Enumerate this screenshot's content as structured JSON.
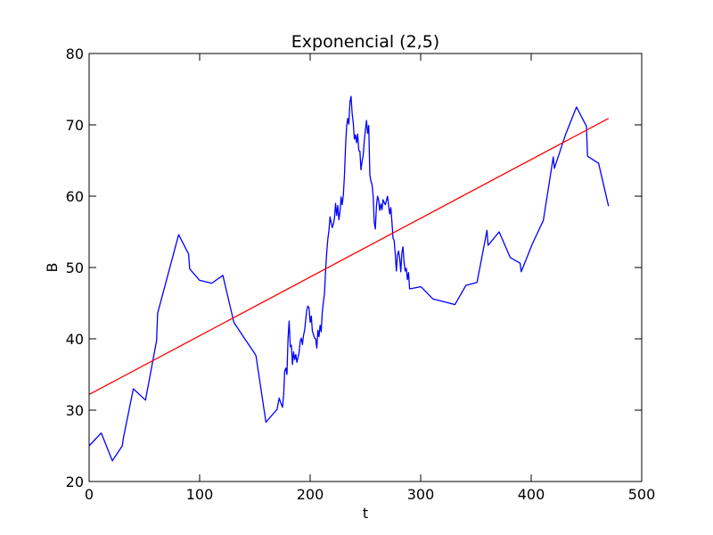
{
  "chart_data": {
    "type": "line",
    "title": "Exponencial (2,5)",
    "xlabel": "t",
    "ylabel": "B",
    "xlim": [
      0,
      500
    ],
    "ylim": [
      20,
      80
    ],
    "x_ticks": [
      "0",
      "100",
      "200",
      "300",
      "400",
      "500"
    ],
    "y_ticks": [
      "20",
      "30",
      "40",
      "50",
      "60",
      "70",
      "80"
    ],
    "grid": false,
    "series": [
      {
        "color": "#0000ff",
        "x": [
          0,
          11,
          21,
          30,
          31,
          40,
          51,
          61,
          62,
          81,
          90,
          91,
          100,
          111,
          121,
          131,
          140,
          150,
          151,
          160,
          161,
          170,
          172,
          173,
          175,
          176,
          177,
          178,
          179,
          180,
          181,
          182,
          183,
          184,
          185,
          186,
          187,
          188,
          189,
          190,
          191,
          192,
          193,
          194,
          195,
          196,
          197,
          198,
          199,
          200,
          201,
          202,
          203,
          204,
          205,
          206,
          207,
          208,
          209,
          210,
          211,
          212,
          213,
          214,
          215,
          216,
          217,
          218,
          219,
          220,
          221,
          222,
          223,
          224,
          225,
          226,
          227,
          228,
          229,
          230,
          231,
          232,
          233,
          234,
          235,
          236,
          237,
          238,
          239,
          240,
          241,
          242,
          243,
          244,
          245,
          246,
          247,
          248,
          249,
          250,
          251,
          252,
          253,
          254,
          255,
          256,
          257,
          258,
          259,
          260,
          261,
          262,
          263,
          264,
          265,
          266,
          267,
          268,
          269,
          270,
          271,
          272,
          273,
          274,
          275,
          276,
          277,
          278,
          279,
          280,
          281,
          282,
          283,
          284,
          285,
          286,
          287,
          288,
          289,
          290,
          300,
          301,
          311,
          321,
          331,
          341,
          351,
          360,
          361,
          371,
          381,
          390,
          391,
          401,
          411,
          420,
          421,
          431,
          441,
          450,
          451,
          461,
          470
        ],
        "y": [
          25.0,
          26.8,
          22.9,
          25.0,
          26.1,
          33.0,
          31.4,
          39.7,
          43.6,
          54.6,
          51.9,
          49.8,
          48.2,
          47.8,
          48.9,
          42.3,
          40.2,
          37.9,
          37.6,
          28.3,
          28.5,
          30.1,
          31.7,
          31.2,
          30.4,
          32.1,
          35.5,
          35.9,
          35.0,
          40.1,
          42.5,
          38.9,
          39.1,
          36.4,
          38.2,
          37.1,
          37.8,
          36.7,
          37.4,
          38.1,
          39.7,
          40.1,
          39.2,
          40.5,
          41.2,
          42.7,
          44.1,
          44.6,
          44.3,
          42.3,
          43.2,
          41.1,
          40.6,
          40.1,
          40.0,
          38.7,
          41.2,
          40.3,
          41.9,
          41.0,
          43.8,
          45.2,
          46.4,
          49.7,
          52.1,
          54.0,
          55.2,
          57.1,
          56.3,
          55.6,
          56.1,
          56.9,
          59.0,
          57.3,
          58.7,
          56.7,
          57.8,
          59.9,
          58.8,
          60.1,
          62.8,
          66.9,
          69.8,
          70.9,
          70.1,
          73.2,
          74.0,
          71.6,
          70.3,
          68.0,
          68.6,
          67.5,
          68.7,
          66.4,
          66.3,
          63.7,
          64.9,
          65.7,
          67.8,
          69.3,
          70.6,
          68.8,
          69.9,
          63.0,
          62.1,
          61.6,
          60.1,
          56.3,
          55.4,
          58.7,
          60.0,
          59.4,
          58.0,
          58.9,
          58.1,
          59.5,
          59.1,
          58.8,
          59.4,
          60.0,
          58.7,
          57.5,
          58.4,
          56.4,
          54.1,
          53.8,
          51.9,
          49.5,
          51.8,
          52.3,
          51.3,
          49.4,
          52.1,
          52.9,
          50.7,
          49.5,
          49.9,
          48.3,
          49.3,
          47.0,
          47.3,
          47.2,
          45.6,
          45.2,
          44.8,
          47.5,
          47.9,
          55.2,
          53.1,
          55.0,
          51.4,
          50.6,
          49.4,
          53.3,
          56.6,
          65.5,
          63.9,
          68.6,
          72.5,
          69.8,
          65.6,
          64.6,
          58.6
        ]
      },
      {
        "color": "#ff0000",
        "x": [
          0,
          470
        ],
        "y": [
          32.2,
          70.9
        ]
      }
    ]
  }
}
